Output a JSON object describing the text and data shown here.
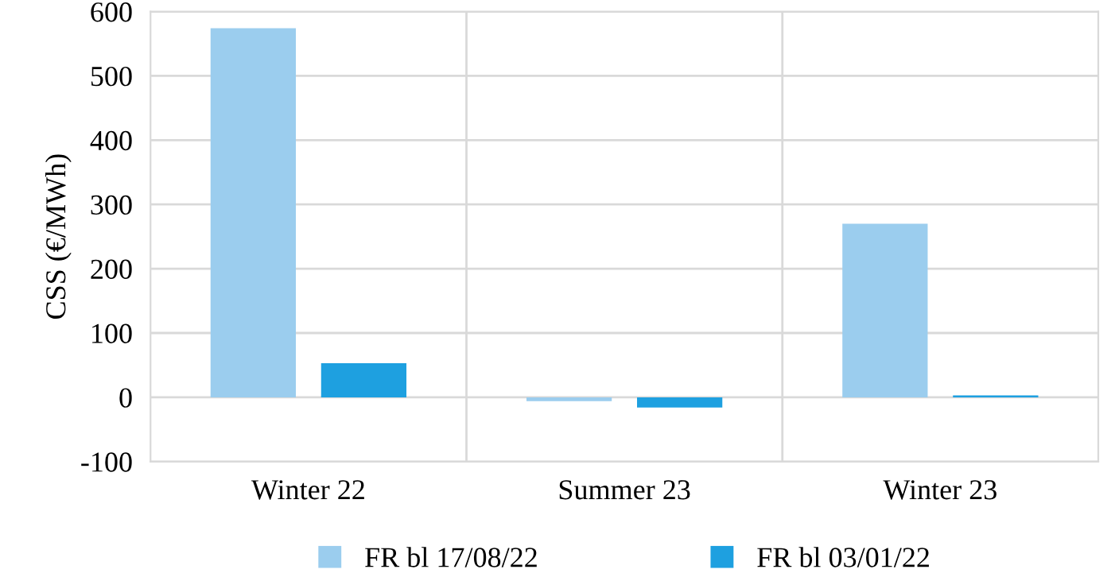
{
  "chart_data": {
    "type": "bar",
    "ylabel": "CSS (€/MWh)",
    "categories": [
      "Winter 22",
      "Summer 23",
      "Winter 23"
    ],
    "series": [
      {
        "name": "FR bl 17/08/22",
        "color": "#9bcdee",
        "values": [
          574,
          -6,
          270
        ]
      },
      {
        "name": "FR bl 03/01/22",
        "color": "#1ea0e0",
        "values": [
          53,
          -16,
          3
        ]
      }
    ],
    "ylim": [
      -100,
      600
    ],
    "yticks": [
      -100,
      0,
      100,
      200,
      300,
      400,
      500,
      600
    ],
    "grid": true,
    "legend": "bottom"
  }
}
